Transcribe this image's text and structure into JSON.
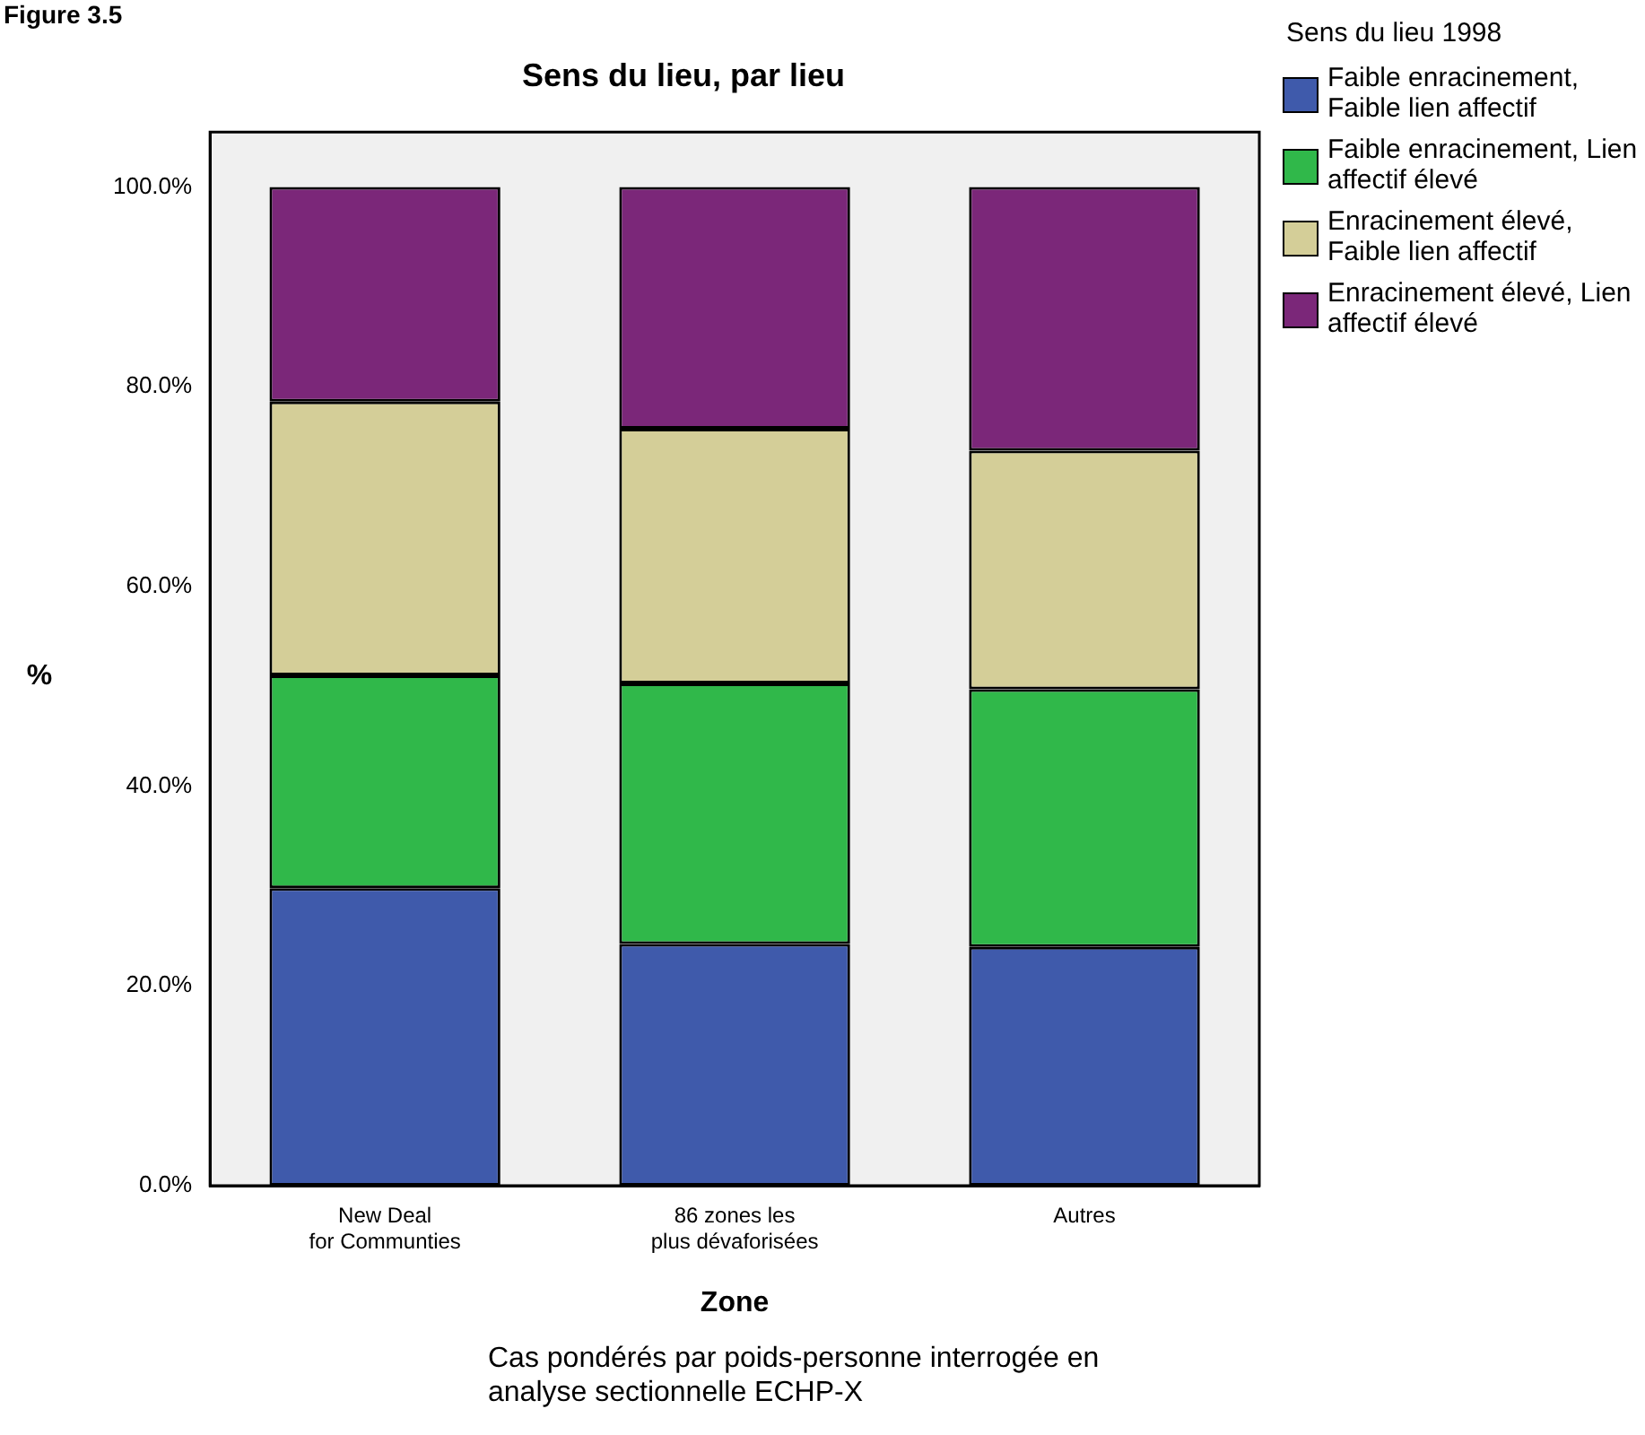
{
  "chart_data": {
    "type": "bar",
    "title": "Sens du lieu, par lieu",
    "xlabel": "Zone",
    "ylabel": "%",
    "legend_title": "Sens du lieu 1998",
    "categories": [
      "New Deal for Communties",
      "86 zones les plus dévaforisées",
      "Autres"
    ],
    "series": [
      {
        "name": "Faible enracinement, Faible lien affectif",
        "color": "#3f5aab",
        "values": [
          29.8,
          24.2,
          23.9
        ]
      },
      {
        "name": "Faible enracinement, Lien affectif élevé",
        "color": "#30b84a",
        "values": [
          21.3,
          26.1,
          25.8
        ]
      },
      {
        "name": "Enracinement élevé, Faible lien affectif",
        "color": "#d4ce98",
        "values": [
          27.4,
          25.5,
          23.9
        ]
      },
      {
        "name": "Enracinement élevé, Lien affectif élevé",
        "color": "#7b2779",
        "values": [
          21.5,
          24.2,
          26.4
        ]
      }
    ],
    "stacked": true,
    "ylim": [
      0,
      105.5
    ],
    "yticks": [
      {
        "value": 0,
        "label": "0.0%"
      },
      {
        "value": 20,
        "label": "20.0%"
      },
      {
        "value": 40,
        "label": "40.0%"
      },
      {
        "value": 60,
        "label": "60.0%"
      },
      {
        "value": 80,
        "label": "80.0%"
      },
      {
        "value": 100,
        "label": "100.0%"
      }
    ],
    "grid": false,
    "legend": "top right",
    "annotations": [
      "Figure 3.5",
      "Cas pondérés par poids-personne interrogée  en analyse sectionnelle ECHP-X"
    ]
  }
}
